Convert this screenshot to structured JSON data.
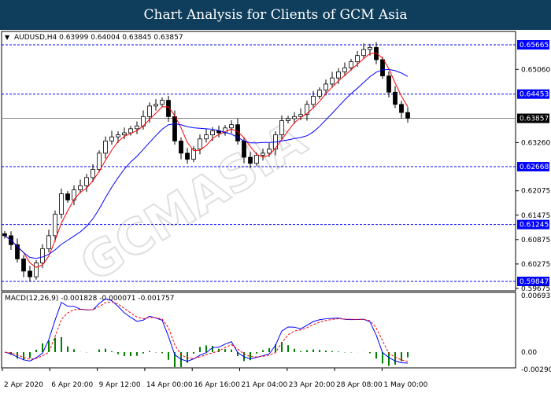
{
  "title": "Chart Analysis for Clients of GCM Asia",
  "watermark": "GCMASIA",
  "colors": {
    "bull": "#000000",
    "ma_fast": "#ff0000",
    "ma_slow": "#0000ff",
    "hline": "#0000ff",
    "hist": "#008000",
    "macd": "#0000ff",
    "signal": "#ff0000"
  },
  "chart_data": {
    "type": "candlestick",
    "symbol_info": "AUDUSD,H4  0.63999 0.64004 0.63845 0.63857",
    "ylim": [
      0.59675,
      0.65665
    ],
    "y_ticks": [
      "0.65060",
      "0.63260",
      "0.62075",
      "0.61475",
      "0.60875",
      "0.60275",
      "0.59675"
    ],
    "horizontal_levels": [
      "0.65665",
      "0.64453",
      "0.62668",
      "0.61245",
      "0.59847"
    ],
    "current_price": "0.63857",
    "x_ticks": [
      "2 Apr 2020",
      "6 Apr 20:00",
      "9 Apr 12:00",
      "14 Apr 00:00",
      "16 Apr 16:00",
      "21 Apr 04:00",
      "23 Apr 20:00",
      "28 Apr 08:00",
      "1 May 00:00"
    ],
    "closes": [
      0.6097,
      0.6075,
      0.604,
      0.601,
      0.5996,
      0.603,
      0.6065,
      0.6097,
      0.615,
      0.62,
      0.6185,
      0.621,
      0.622,
      0.624,
      0.626,
      0.63,
      0.633,
      0.634,
      0.6345,
      0.635,
      0.636,
      0.6367,
      0.639,
      0.6416,
      0.642,
      0.643,
      0.639,
      0.633,
      0.63,
      0.6285,
      0.631,
      0.6335,
      0.6345,
      0.6355,
      0.635,
      0.6362,
      0.637,
      0.633,
      0.629,
      0.6275,
      0.6295,
      0.63,
      0.631,
      0.6345,
      0.638,
      0.6385,
      0.639,
      0.6395,
      0.642,
      0.644,
      0.6455,
      0.647,
      0.6485,
      0.65,
      0.651,
      0.6525,
      0.654,
      0.6555,
      0.656,
      0.653,
      0.649,
      0.645,
      0.642,
      0.64,
      0.6386
    ],
    "macd": {
      "label": "MACD(12,26,9) -0.001828 -0.000071 -0.001757",
      "ylim": [
        -0.002905,
        0.006938
      ],
      "y_ticks": [
        "0.006938",
        "0.00",
        "-0.002905"
      ]
    }
  }
}
